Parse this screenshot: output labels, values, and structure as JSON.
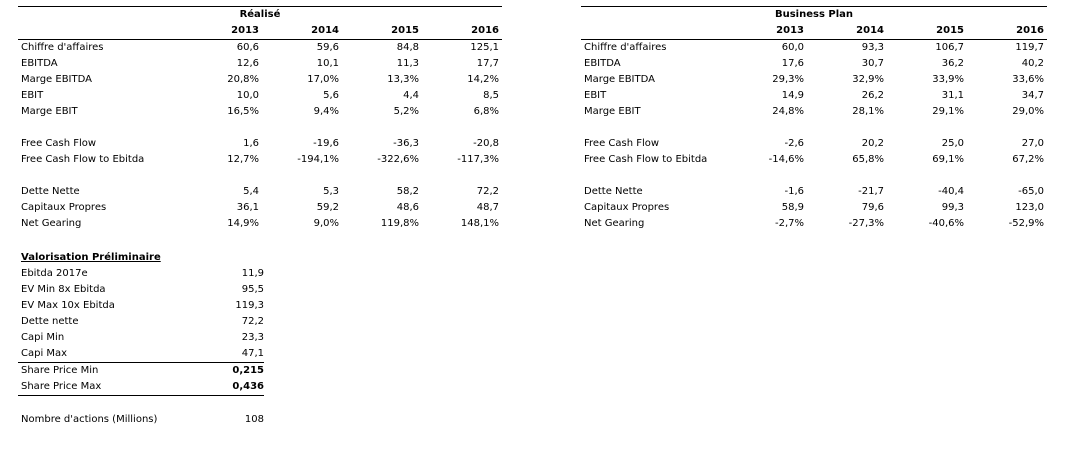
{
  "realise": {
    "title": "Réalisé",
    "years": [
      "2013",
      "2014",
      "2015",
      "2016"
    ],
    "groups": [
      [
        {
          "label": "Chiffre d'affaires",
          "values": [
            "60,6",
            "59,6",
            "84,8",
            "125,1"
          ]
        },
        {
          "label": "EBITDA",
          "values": [
            "12,6",
            "10,1",
            "11,3",
            "17,7"
          ]
        },
        {
          "label": "Marge EBITDA",
          "values": [
            "20,8%",
            "17,0%",
            "13,3%",
            "14,2%"
          ]
        },
        {
          "label": "EBIT",
          "values": [
            "10,0",
            "5,6",
            "4,4",
            "8,5"
          ]
        },
        {
          "label": "Marge EBIT",
          "values": [
            "16,5%",
            "9,4%",
            "5,2%",
            "6,8%"
          ]
        }
      ],
      [
        {
          "label": "Free Cash Flow",
          "values": [
            "1,6",
            "-19,6",
            "-36,3",
            "-20,8"
          ]
        },
        {
          "label": "Free Cash Flow to Ebitda",
          "values": [
            "12,7%",
            "-194,1%",
            "-322,6%",
            "-117,3%"
          ]
        }
      ],
      [
        {
          "label": "Dette Nette",
          "values": [
            "5,4",
            "5,3",
            "58,2",
            "72,2"
          ]
        },
        {
          "label": "Capitaux Propres",
          "values": [
            "36,1",
            "59,2",
            "48,6",
            "48,7"
          ]
        },
        {
          "label": "Net Gearing",
          "values": [
            "14,9%",
            "9,0%",
            "119,8%",
            "148,1%"
          ]
        }
      ]
    ]
  },
  "business_plan": {
    "title": "Business Plan",
    "years": [
      "2013",
      "2014",
      "2015",
      "2016"
    ],
    "groups": [
      [
        {
          "label": "Chiffre d'affaires",
          "values": [
            "60,0",
            "93,3",
            "106,7",
            "119,7"
          ]
        },
        {
          "label": "EBITDA",
          "values": [
            "17,6",
            "30,7",
            "36,2",
            "40,2"
          ]
        },
        {
          "label": "Marge EBITDA",
          "values": [
            "29,3%",
            "32,9%",
            "33,9%",
            "33,6%"
          ]
        },
        {
          "label": "EBIT",
          "values": [
            "14,9",
            "26,2",
            "31,1",
            "34,7"
          ]
        },
        {
          "label": "Marge EBIT",
          "values": [
            "24,8%",
            "28,1%",
            "29,1%",
            "29,0%"
          ]
        }
      ],
      [
        {
          "label": "Free Cash Flow",
          "values": [
            "-2,6",
            "20,2",
            "25,0",
            "27,0"
          ]
        },
        {
          "label": "Free Cash Flow to Ebitda",
          "values": [
            "-14,6%",
            "65,8%",
            "69,1%",
            "67,2%"
          ]
        }
      ],
      [
        {
          "label": "Dette Nette",
          "values": [
            "-1,6",
            "-21,7",
            "-40,4",
            "-65,0"
          ]
        },
        {
          "label": "Capitaux Propres",
          "values": [
            "58,9",
            "79,6",
            "99,3",
            "123,0"
          ]
        },
        {
          "label": "Net Gearing",
          "values": [
            "-2,7%",
            "-27,3%",
            "-40,6%",
            "-52,9%"
          ]
        }
      ]
    ]
  },
  "valorisation": {
    "title": "Valorisation Préliminaire",
    "rows": [
      {
        "label": "Ebitda 2017e",
        "value": "11,9"
      },
      {
        "label": "EV Min 8x Ebitda",
        "value": "95,5"
      },
      {
        "label": "EV Max 10x Ebitda",
        "value": "119,3"
      },
      {
        "label": "Dette nette",
        "value": "72,2"
      },
      {
        "label": "Capi Min",
        "value": "23,3"
      },
      {
        "label": "Capi Max",
        "value": "47,1"
      }
    ],
    "share_price_min": {
      "label": "Share Price Min",
      "value": "0,215"
    },
    "share_price_max": {
      "label": "Share Price Max",
      "value": "0,436"
    },
    "nombre_actions": {
      "label": "Nombre d'actions (Millions)",
      "value": "108"
    }
  }
}
